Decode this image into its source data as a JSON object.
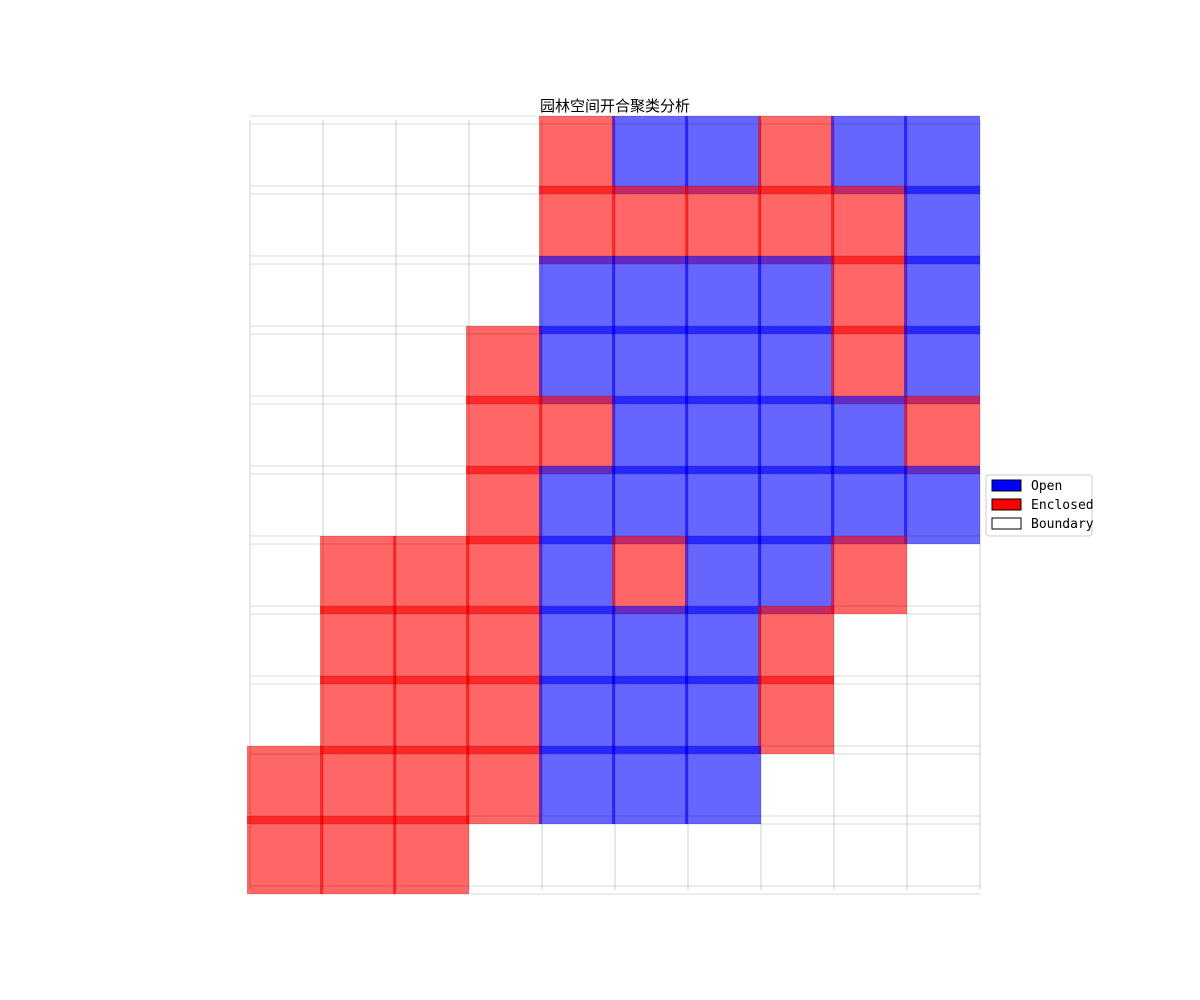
{
  "chart_data": {
    "type": "heatmap",
    "title": "园林空间开合聚类分析",
    "xlabel": "",
    "ylabel": "",
    "grid": true,
    "legend_placement": "right",
    "rows": 11,
    "cols": 10,
    "categories": [
      {
        "code": "O",
        "name": "Open",
        "color": "#0000ff"
      },
      {
        "code": "E",
        "name": "Enclosed",
        "color": "#ff0000"
      },
      {
        "code": "B",
        "name": "Boundary",
        "color": "#ffffff"
      }
    ],
    "grid_cells": [
      "BBBBEOOEOO",
      "BBBBEEEEEO",
      "BBBBOOOOEO",
      "BBBEOOOOEO",
      "BBBEEOOOOE",
      "BBBEOOOOOO",
      "BEEEOEOOEB",
      "BEEEOOOEBB",
      "BEEEOOOEBB",
      "EEEEOOOBBB",
      "EEEBBBBBBB"
    ]
  }
}
